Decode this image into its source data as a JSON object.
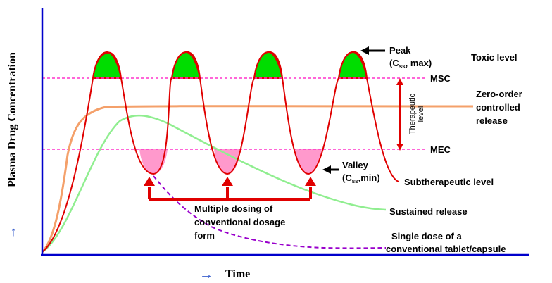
{
  "axes": {
    "y_label": "Plasma Drug Concentration",
    "y_arrow": "→",
    "x_label": "Time",
    "x_arrow": "→"
  },
  "levels": {
    "msc": "MSC",
    "mec": "MEC",
    "therapeutic_line1": "Therapeutic",
    "therapeutic_line2": "level"
  },
  "annotations": {
    "toxic": "Toxic level",
    "peak_line1": "Peak",
    "peak_line2": "(C",
    "peak_sub": "ss",
    "peak_line2_end": ", max)",
    "valley_line1": "Valley",
    "valley_line2": "(C",
    "valley_sub": "ss",
    "valley_line2_end": ",min)",
    "zero_order_1": "Zero-order",
    "zero_order_2": "controlled",
    "zero_order_3": "release",
    "subtherapeutic": "Subtherapeutic level",
    "sustained": "Sustained release",
    "single_dose_1": "Single dose of a",
    "single_dose_2": "conventional tablet/capsule",
    "multiple_1": "Multiple dosing of",
    "multiple_2": "conventional dosage",
    "multiple_3": "form"
  },
  "colors": {
    "axis": "#0000cc",
    "zero_order": "#f4a06a",
    "sustained": "#90ee90",
    "multiple": "#e00000",
    "single": "#9900cc",
    "toxic_fill": "#00dd00",
    "valley_fill": "#ff99cc",
    "level_lines": "#ff33cc",
    "therapeutic": "#e00000"
  }
}
